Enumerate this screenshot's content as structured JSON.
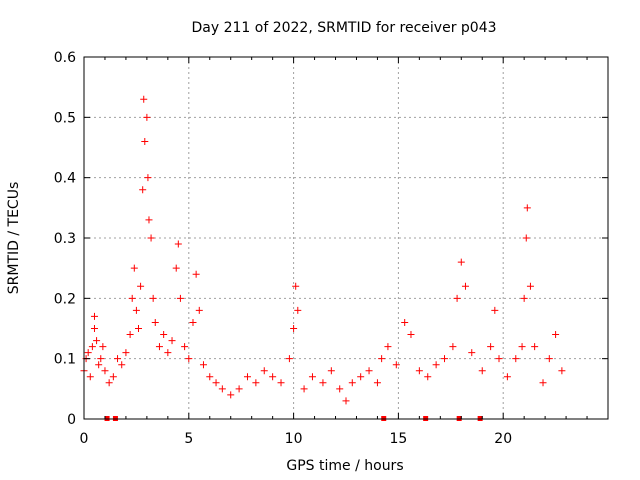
{
  "chart_data": {
    "type": "scatter",
    "title": "Day 211 of 2022, SRMTID for receiver p043",
    "xlabel": "GPS time / hours",
    "ylabel": "SRMTID / TECUs",
    "xlim": [
      0,
      25
    ],
    "ylim": [
      0,
      0.6
    ],
    "x_ticks": [
      0,
      5,
      10,
      15,
      20
    ],
    "x_tick_labels": [
      "0",
      "5",
      "10",
      "15",
      "20"
    ],
    "y_ticks": [
      0,
      0.1,
      0.2,
      0.3,
      0.4,
      0.5,
      0.6
    ],
    "y_tick_labels": [
      "0",
      "0.1",
      "0.2",
      "0.3",
      "0.4",
      "0.5",
      "0.6"
    ],
    "grid": true,
    "marker": "+",
    "color": "#ff0000",
    "zero_value_hours": [
      1.1,
      1.5,
      14.3,
      16.3,
      17.9,
      18.9
    ],
    "series": [
      {
        "name": "SRMTID",
        "points": [
          [
            0.0,
            0.08
          ],
          [
            0.1,
            0.1
          ],
          [
            0.2,
            0.11
          ],
          [
            0.3,
            0.07
          ],
          [
            0.4,
            0.12
          ],
          [
            0.5,
            0.15
          ],
          [
            0.5,
            0.17
          ],
          [
            0.6,
            0.13
          ],
          [
            0.7,
            0.09
          ],
          [
            0.8,
            0.1
          ],
          [
            0.9,
            0.12
          ],
          [
            1.0,
            0.08
          ],
          [
            1.2,
            0.06
          ],
          [
            1.4,
            0.07
          ],
          [
            1.6,
            0.1
          ],
          [
            1.8,
            0.09
          ],
          [
            2.0,
            0.11
          ],
          [
            2.2,
            0.14
          ],
          [
            2.3,
            0.2
          ],
          [
            2.4,
            0.25
          ],
          [
            2.5,
            0.18
          ],
          [
            2.6,
            0.15
          ],
          [
            2.7,
            0.22
          ],
          [
            2.8,
            0.38
          ],
          [
            2.85,
            0.53
          ],
          [
            2.9,
            0.46
          ],
          [
            3.0,
            0.5
          ],
          [
            3.05,
            0.4
          ],
          [
            3.1,
            0.33
          ],
          [
            3.2,
            0.3
          ],
          [
            3.3,
            0.2
          ],
          [
            3.4,
            0.16
          ],
          [
            3.6,
            0.12
          ],
          [
            3.8,
            0.14
          ],
          [
            4.0,
            0.11
          ],
          [
            4.2,
            0.13
          ],
          [
            4.4,
            0.25
          ],
          [
            4.5,
            0.29
          ],
          [
            4.6,
            0.2
          ],
          [
            4.8,
            0.12
          ],
          [
            5.0,
            0.1
          ],
          [
            5.2,
            0.16
          ],
          [
            5.35,
            0.24
          ],
          [
            5.5,
            0.18
          ],
          [
            5.7,
            0.09
          ],
          [
            6.0,
            0.07
          ],
          [
            6.3,
            0.06
          ],
          [
            6.6,
            0.05
          ],
          [
            7.0,
            0.04
          ],
          [
            7.4,
            0.05
          ],
          [
            7.8,
            0.07
          ],
          [
            8.2,
            0.06
          ],
          [
            8.6,
            0.08
          ],
          [
            9.0,
            0.07
          ],
          [
            9.4,
            0.06
          ],
          [
            9.8,
            0.1
          ],
          [
            10.0,
            0.15
          ],
          [
            10.1,
            0.22
          ],
          [
            10.2,
            0.18
          ],
          [
            10.5,
            0.05
          ],
          [
            10.9,
            0.07
          ],
          [
            11.4,
            0.06
          ],
          [
            11.8,
            0.08
          ],
          [
            12.2,
            0.05
          ],
          [
            12.5,
            0.03
          ],
          [
            12.8,
            0.06
          ],
          [
            13.2,
            0.07
          ],
          [
            13.6,
            0.08
          ],
          [
            14.0,
            0.06
          ],
          [
            14.2,
            0.1
          ],
          [
            14.5,
            0.12
          ],
          [
            14.9,
            0.09
          ],
          [
            15.3,
            0.16
          ],
          [
            15.6,
            0.14
          ],
          [
            16.0,
            0.08
          ],
          [
            16.4,
            0.07
          ],
          [
            16.8,
            0.09
          ],
          [
            17.2,
            0.1
          ],
          [
            17.6,
            0.12
          ],
          [
            17.8,
            0.2
          ],
          [
            18.0,
            0.26
          ],
          [
            18.2,
            0.22
          ],
          [
            18.5,
            0.11
          ],
          [
            19.0,
            0.08
          ],
          [
            19.4,
            0.12
          ],
          [
            19.6,
            0.18
          ],
          [
            19.8,
            0.1
          ],
          [
            20.2,
            0.07
          ],
          [
            20.6,
            0.1
          ],
          [
            20.9,
            0.12
          ],
          [
            21.0,
            0.2
          ],
          [
            21.1,
            0.3
          ],
          [
            21.15,
            0.35
          ],
          [
            21.3,
            0.22
          ],
          [
            21.5,
            0.12
          ],
          [
            21.9,
            0.06
          ],
          [
            22.2,
            0.1
          ],
          [
            22.5,
            0.14
          ],
          [
            22.8,
            0.08
          ]
        ]
      }
    ]
  }
}
